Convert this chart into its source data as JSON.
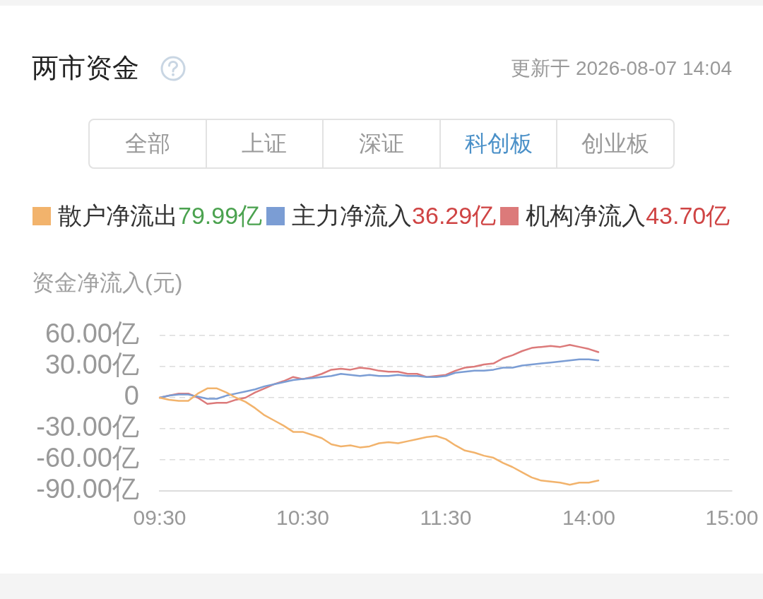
{
  "chart_data": {
    "type": "line",
    "title": "两市资金",
    "subtitle": "更新于 2026-08-07 14:04",
    "ylabel": "资金净流入(元)",
    "annotations": [
      "全部",
      "上证",
      "深证",
      "科创板",
      "创业板",
      "79.99亿",
      "36.29亿",
      "43.70亿"
    ],
    "categories": [
      "09:30",
      null,
      null,
      null,
      null,
      null,
      null,
      null,
      null,
      null,
      null,
      null,
      null,
      null,
      null,
      "10:30",
      null,
      null,
      null,
      null,
      null,
      null,
      null,
      null,
      null,
      null,
      null,
      null,
      null,
      null,
      "11:30",
      null,
      null,
      null,
      null,
      null,
      null,
      null,
      null,
      null,
      null,
      null,
      null,
      null,
      null,
      "14:00",
      null,
      null,
      null,
      null,
      null,
      null,
      null,
      null,
      null,
      null,
      null,
      null,
      null,
      null,
      "15:00"
    ],
    "ylim": [
      -90,
      60
    ],
    "yticks": [
      {
        "value": -90,
        "label": "-90.00亿"
      },
      {
        "value": -60,
        "label": "-60.00亿"
      },
      {
        "value": -30,
        "label": "-30.00亿"
      },
      0,
      {
        "value": 30,
        "label": "30.00亿"
      },
      {
        "value": 60,
        "label": "60.00亿"
      }
    ],
    "grid": "y",
    "legend": "top left",
    "marker": "none",
    "line_style": "solid",
    "series": [
      {
        "name": "散户净流出",
        "color": "#f2b36c",
        "values": [
          0,
          -2,
          -3,
          -3,
          4,
          9,
          9,
          5,
          0,
          -4,
          -10,
          -17,
          -22,
          -27,
          -33,
          -33,
          -36,
          -39,
          -45,
          -47,
          -46,
          -48,
          -47,
          -44,
          -43,
          -44,
          -42,
          -40,
          -38,
          -37,
          -40,
          -46,
          -51,
          -53,
          -56,
          -58,
          -63,
          -67,
          -72,
          -77,
          -80,
          -81,
          -82,
          -84,
          -82,
          -82,
          -80,
          null,
          null,
          null,
          null,
          null,
          null,
          null,
          null,
          null,
          null,
          null,
          null,
          null,
          null
        ]
      },
      {
        "name": "主力净流入",
        "color": "#7b9dd4",
        "values": [
          0,
          2,
          3,
          3,
          1,
          -1,
          -1,
          2,
          4,
          6,
          8,
          11,
          13,
          15,
          17,
          18,
          19,
          20,
          21,
          23,
          22,
          21,
          22,
          21,
          21,
          22,
          21,
          21,
          20,
          20,
          21,
          24,
          25,
          26,
          26,
          27,
          29,
          29,
          31,
          32,
          33,
          34,
          35,
          36,
          37,
          37,
          36,
          null,
          null,
          null,
          null,
          null,
          null,
          null,
          null,
          null,
          null,
          null,
          null,
          null,
          null
        ]
      },
      {
        "name": "机构净流入",
        "color": "#dc7a7a",
        "values": [
          0,
          2,
          4,
          4,
          0,
          -6,
          -5,
          -5,
          -2,
          0,
          5,
          9,
          13,
          16,
          20,
          18,
          20,
          23,
          27,
          28,
          27,
          29,
          28,
          26,
          25,
          25,
          23,
          23,
          20,
          21,
          22,
          26,
          29,
          30,
          32,
          33,
          38,
          41,
          45,
          48,
          49,
          50,
          49,
          51,
          49,
          47,
          44,
          null,
          null,
          null,
          null,
          null,
          null,
          null,
          null,
          null,
          null,
          null,
          null,
          null,
          null
        ]
      }
    ]
  }
}
